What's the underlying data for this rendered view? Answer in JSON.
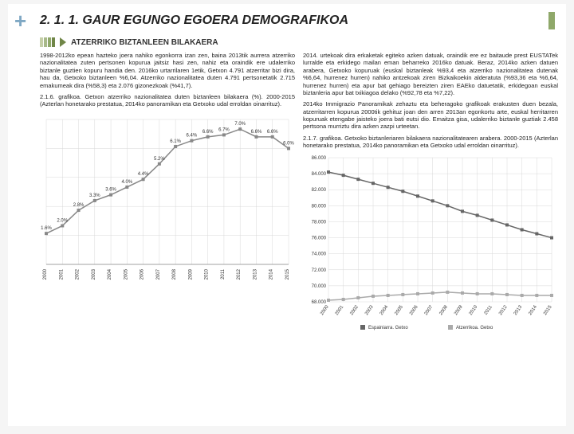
{
  "header": {
    "plus": "+",
    "title": "2. 1. 1. GAUR EGUNGO EGOERA DEMOGRAFIKOA",
    "subtitle": "ATZERRIKO BIZTANLEEN BILAKAERA"
  },
  "left_col": {
    "p1": "1998-2012ko epean hazteko joera nahiko egonkorra izan zen, baina 2013tik aurrera atzerriko nazionalitatea zuten pertsonen kopurua jaitsiz hasi zen, nahiz eta oraindik ere udalerriko biztanle guztien kopuru handia den. 2016ko urtarrilaren 1etik, Getxon 4.791 atzerritar bizi dira, hau da, Getxoko biztanleen %6,04. Atzerriko nazionalitatea duten 4.791 pertsonetatik 2.715 emakumeak dira (%58,3) eta 2.076 gizonezkoak (%41,7).",
    "p2": "2.1.6. grafikoa. Getxon atzerriko nazionalitatea duten biztanleen bilakaera (%). 2000-2015 (Azterlan honetarako prestatua, 2014ko panoramikan eta Getxoko udal erroldan oinarrituz)."
  },
  "right_col": {
    "p1": "2014. urtekoak dira erkaketak egiteko azken datuak, oraindik ere ez baitaude prest EUSTATek lurralde eta erkidego mailan eman beharreko 2016ko datuak. Beraz, 2014ko azken datuen arabera, Getxoko kopuruak (euskal biztanleak %93,4 eta atzerriko nazionalitatea dutenak %6,64, hurrenez hurren) nahiko antzekoak ziren Bizkaikoekin alderatuta (%93,36 eta %6,64, hurrenez hurren) eta apur bat gehiago bereizten ziren EAEko datuetatik, erkidegoan euskal biztanleria apur bat txikiagoa delako (%92,78 eta %7,22).",
    "p2": "2014ko Immigrazio Panoramikak zehaztu eta beheragoko grafikoak erakusten duen bezala, atzerritarren kopurua 2000tik gehituz joan den arren 2013an egonkortu arte, euskal herritarren kopuruak etengabe jaisteko joera bati eutsi dio. Emaitza gisa, udalerriko biztanle guztiak 2.458 pertsona murriztu dira azken zazpi urteetan.",
    "p3": "2.1.7. grafikoa. Getxoko biztanleriaren bilakaera nazionalitatearen arabera. 2000-2015 (Azterlan honetarako prestatua, 2014ko panoramikan eta Getxoko udal erroldan oinarrituz)."
  },
  "chart1": {
    "type": "line",
    "years": [
      "2000",
      "2001",
      "2002",
      "2003",
      "2004",
      "2005",
      "2006",
      "2007",
      "2008",
      "2009",
      "2010",
      "2011",
      "2012",
      "2013",
      "2014",
      "2015"
    ],
    "values": [
      1.6,
      2.0,
      2.8,
      3.3,
      3.6,
      4.0,
      4.4,
      5.2,
      6.1,
      6.4,
      6.6,
      6.7,
      7.0,
      6.6,
      6.6,
      6.0
    ],
    "line_color": "#888888",
    "marker_color": "#888888",
    "grid_color": "#d8d8d8",
    "label_fontsize": 6,
    "axis_fontsize": 6,
    "ymax": 7.5
  },
  "chart2": {
    "type": "line",
    "years": [
      "2000",
      "2001",
      "2002",
      "2003",
      "2004",
      "2005",
      "2006",
      "2007",
      "2008",
      "2009",
      "2010",
      "2011",
      "2012",
      "2013",
      "2014",
      "2015"
    ],
    "series": [
      {
        "name": "Espainiar",
        "color": "#666666",
        "values": [
          84200,
          83800,
          83300,
          82800,
          82300,
          81800,
          81200,
          80600,
          80000,
          79300,
          78800,
          78200,
          77600,
          77000,
          76500,
          76000
        ]
      },
      {
        "name": "Atzerriko",
        "color": "#aaaaaa",
        "values": [
          68200,
          68300,
          68500,
          68700,
          68800,
          68900,
          69000,
          69100,
          69200,
          69100,
          69000,
          69000,
          68900,
          68800,
          68800,
          68800
        ]
      }
    ],
    "ymin": 68000,
    "ymax": 86000,
    "ytick_step": 2000,
    "grid_color": "#d8d8d8",
    "axis_fontsize": 6,
    "legend": [
      "Espainiarra. Getxo",
      "Atzerrikoa. Getxo"
    ]
  }
}
